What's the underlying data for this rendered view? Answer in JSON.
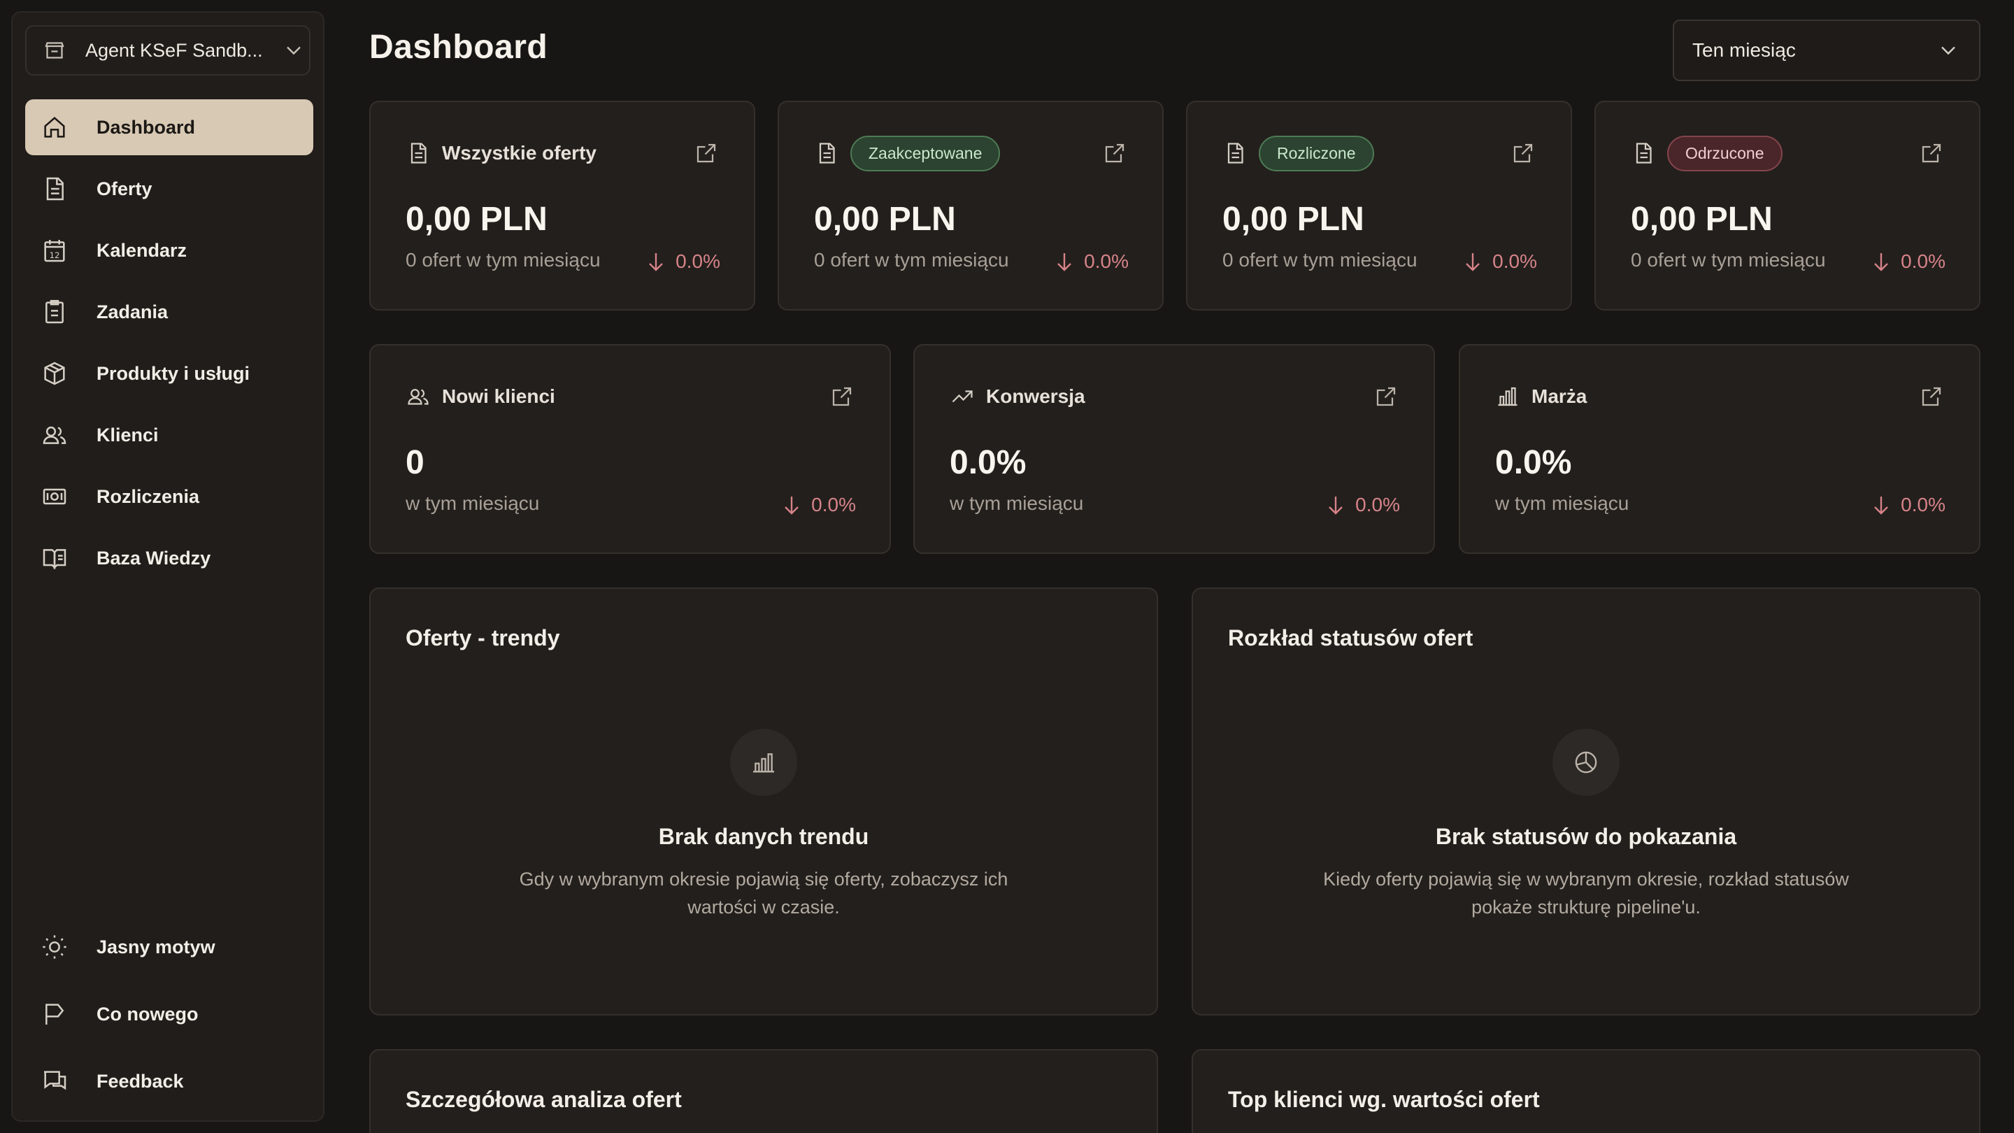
{
  "sidebar": {
    "org": {
      "label": "Agent KSeF Sandb...",
      "icon": "store-icon"
    },
    "items": [
      {
        "label": "Dashboard",
        "icon": "home-icon",
        "active": true
      },
      {
        "label": "Oferty",
        "icon": "document-icon"
      },
      {
        "label": "Kalendarz",
        "icon": "calendar-icon",
        "icon_text": "12"
      },
      {
        "label": "Zadania",
        "icon": "clipboard-icon"
      },
      {
        "label": "Produkty i usługi",
        "icon": "box-icon"
      },
      {
        "label": "Klienci",
        "icon": "users-icon"
      },
      {
        "label": "Rozliczenia",
        "icon": "banknote-icon"
      },
      {
        "label": "Baza Wiedzy",
        "icon": "book-icon"
      }
    ],
    "bottom": [
      {
        "label": "Jasny motyw",
        "icon": "sun-icon"
      },
      {
        "label": "Co nowego",
        "icon": "flag-icon"
      },
      {
        "label": "Feedback",
        "icon": "message-icon"
      }
    ]
  },
  "header": {
    "title": "Dashboard",
    "period": "Ten miesiąc"
  },
  "offer_cards": [
    {
      "title": "Wszystkie oferty",
      "value": "0,00 PLN",
      "sub": "0 ofert w tym miesiącu",
      "delta": "0.0%"
    },
    {
      "badge": "Zaakceptowane",
      "badge_color": "#2b4330",
      "value": "0,00 PLN",
      "sub": "0 ofert w tym miesiącu",
      "delta": "0.0%"
    },
    {
      "badge": "Rozliczone",
      "badge_color": "#2b4330",
      "value": "0,00 PLN",
      "sub": "0 ofert w tym miesiącu",
      "delta": "0.0%"
    },
    {
      "badge": "Odrzucone",
      "badge_color": "#4a262a",
      "value": "0,00 PLN",
      "sub": "0 ofert w tym miesiącu",
      "delta": "0.0%"
    }
  ],
  "metric_cards": [
    {
      "title": "Nowi klienci",
      "icon": "users-icon",
      "value": "0",
      "sub": "w tym miesiącu",
      "delta": "0.0%"
    },
    {
      "title": "Konwersja",
      "icon": "trending-up-icon",
      "value": "0.0%",
      "sub": "w tym miesiącu",
      "delta": "0.0%"
    },
    {
      "title": "Marża",
      "icon": "bar-chart-icon",
      "value": "0.0%",
      "sub": "w tym miesiącu",
      "delta": "0.0%"
    }
  ],
  "panels": {
    "trends": {
      "title": "Oferty - trendy",
      "empty_title": "Brak danych trendu",
      "empty_text": "Gdy w wybranym okresie pojawią się oferty, zobaczysz ich wartości w czasie."
    },
    "statuses": {
      "title": "Rozkład statusów ofert",
      "empty_title": "Brak statusów do pokazania",
      "empty_text": "Kiedy oferty pojawią się w wybranym okresie, rozkład statusów pokaże strukturę pipeline'u."
    },
    "analysis": {
      "title": "Szczegółowa analiza ofert"
    },
    "top_clients": {
      "title": "Top klienci wg. wartości ofert"
    }
  },
  "colors": {
    "accent": "#d8c9b4",
    "negative": "#d68389",
    "background": "#181614",
    "card": "#231f1c"
  }
}
